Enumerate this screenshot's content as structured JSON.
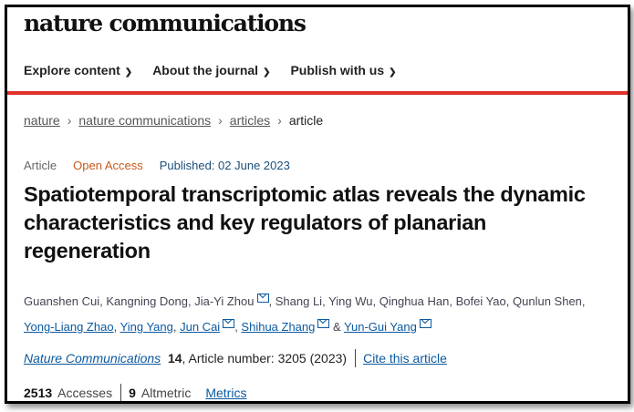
{
  "site": {
    "logo": "nature communications"
  },
  "nav": [
    {
      "label": "Explore content"
    },
    {
      "label": "About the journal"
    },
    {
      "label": "Publish with us"
    }
  ],
  "breadcrumb": [
    "nature",
    "nature communications",
    "articles",
    "article"
  ],
  "meta": {
    "type": "Article",
    "access": "Open Access",
    "published": "Published: 02 June 2023"
  },
  "title": "Spatiotemporal transcriptomic atlas reveals the dynamic characteristics and key regulators of planarian regeneration",
  "authors": {
    "a0": "Guanshen Cui",
    "a1": "Kangning Dong",
    "a2": "Jia-Yi Zhou",
    "a3": "Shang Li",
    "a4": "Ying Wu",
    "a5": "Qinghua Han",
    "a6": "Bofei Yao",
    "a7": "Qunlun Shen",
    "a8": "Yong-Liang Zhao",
    "a9": "Ying Yang",
    "a10": "Jun Cai",
    "a11": "Shihua Zhang",
    "a12": "Yun-Gui Yang"
  },
  "journal": {
    "name": "Nature Communications",
    "volume": "14",
    "article": ", Article number: 3205 (2023)",
    "cite": "Cite this article"
  },
  "metrics": {
    "accesses": "2513",
    "accesses_label": "Accesses",
    "altmetric": "9",
    "altmetric_label": "Altmetric",
    "link": "Metrics"
  },
  "colors": {
    "accent": "#e0312a",
    "link": "#0b5aa0",
    "open_access": "#c45a1a"
  }
}
